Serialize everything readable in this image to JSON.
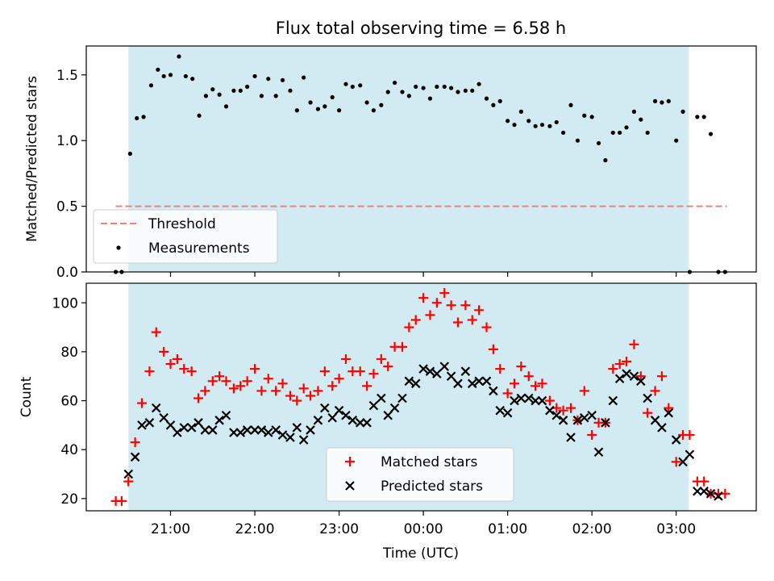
{
  "title": "Flux total observing time = 6.58 h",
  "x_axis": {
    "label": "Time (UTC)",
    "tick_labels": [
      "21:00",
      "22:00",
      "23:00",
      "00:00",
      "01:00",
      "02:00",
      "03:00"
    ],
    "tick_hours": [
      21,
      22,
      23,
      24,
      25,
      26,
      27
    ],
    "range_hours": [
      20.0,
      27.95
    ]
  },
  "shaded_window_hours": [
    20.5,
    27.15
  ],
  "colors": {
    "shade": "#add8e6",
    "threshold": "#f08080",
    "matched": "#ff0000",
    "predicted": "#000000",
    "measurements": "#000000"
  },
  "chart_data": [
    {
      "type": "scatter",
      "panel": "top",
      "ylabel": "Matched/Predicted stars",
      "ylim": [
        0,
        1.72
      ],
      "yticks": [
        0.0,
        0.5,
        1.0,
        1.5
      ],
      "ytick_labels": [
        "0.0",
        "0.5",
        "1.0",
        "1.5"
      ],
      "legend_position": "lower-left",
      "threshold": {
        "name": "Threshold",
        "value": 0.5,
        "x_range_hours": [
          20.35,
          27.6
        ]
      },
      "series": [
        {
          "name": "Measurements",
          "x_hours": [
            20.35,
            20.42,
            20.52,
            20.6,
            20.68,
            20.77,
            20.85,
            20.92,
            21.0,
            21.1,
            21.18,
            21.26,
            21.34,
            21.42,
            21.5,
            21.58,
            21.66,
            21.75,
            21.83,
            21.91,
            22.0,
            22.08,
            22.16,
            22.25,
            22.33,
            22.42,
            22.5,
            22.58,
            22.66,
            22.75,
            22.83,
            22.92,
            23.0,
            23.08,
            23.16,
            23.25,
            23.33,
            23.41,
            23.5,
            23.58,
            23.66,
            23.75,
            23.83,
            23.91,
            24.0,
            24.08,
            24.16,
            24.25,
            24.33,
            24.41,
            24.5,
            24.58,
            24.66,
            24.75,
            24.83,
            24.91,
            25.0,
            25.08,
            25.16,
            25.25,
            25.33,
            25.41,
            25.5,
            25.58,
            25.66,
            25.75,
            25.83,
            25.91,
            26.0,
            26.08,
            26.16,
            26.25,
            26.33,
            26.41,
            26.5,
            26.58,
            26.66,
            26.75,
            26.83,
            26.91,
            27.0,
            27.08,
            27.16,
            27.25,
            27.33,
            27.41,
            27.5,
            27.58
          ],
          "values": [
            0.0,
            0.0,
            0.9,
            1.17,
            1.18,
            1.42,
            1.54,
            1.49,
            1.5,
            1.64,
            1.49,
            1.47,
            1.19,
            1.34,
            1.39,
            1.35,
            1.26,
            1.38,
            1.38,
            1.41,
            1.49,
            1.34,
            1.47,
            1.34,
            1.46,
            1.38,
            1.23,
            1.48,
            1.29,
            1.24,
            1.26,
            1.33,
            1.23,
            1.43,
            1.41,
            1.42,
            1.29,
            1.23,
            1.27,
            1.37,
            1.44,
            1.37,
            1.34,
            1.41,
            1.4,
            1.32,
            1.41,
            1.41,
            1.4,
            1.37,
            1.38,
            1.38,
            1.43,
            1.32,
            1.27,
            1.3,
            1.15,
            1.12,
            1.22,
            1.15,
            1.11,
            1.12,
            1.11,
            1.14,
            1.06,
            1.27,
            1.0,
            1.19,
            1.18,
            0.98,
            0.85,
            1.06,
            1.06,
            1.1,
            1.22,
            1.16,
            1.06,
            1.3,
            1.29,
            1.3,
            1.0,
            1.22,
            0.0,
            1.18,
            1.18,
            1.05,
            0.0,
            0.0
          ]
        }
      ]
    },
    {
      "type": "scatter",
      "panel": "bottom",
      "ylabel": "Count",
      "ylim": [
        15,
        108
      ],
      "yticks": [
        20,
        40,
        60,
        80,
        100
      ],
      "ytick_labels": [
        "20",
        "40",
        "60",
        "80",
        "100"
      ],
      "legend_position": "lower-center",
      "series": [
        {
          "name": "Matched stars",
          "marker": "plus",
          "x_hours": [
            20.35,
            20.42,
            20.5,
            20.58,
            20.66,
            20.75,
            20.83,
            20.92,
            21.0,
            21.08,
            21.16,
            21.25,
            21.33,
            21.41,
            21.5,
            21.58,
            21.66,
            21.75,
            21.83,
            21.91,
            22.0,
            22.08,
            22.16,
            22.25,
            22.33,
            22.42,
            22.5,
            22.58,
            22.66,
            22.75,
            22.83,
            22.92,
            23.0,
            23.08,
            23.16,
            23.25,
            23.33,
            23.41,
            23.5,
            23.58,
            23.66,
            23.75,
            23.83,
            23.91,
            24.0,
            24.08,
            24.16,
            24.25,
            24.33,
            24.41,
            24.5,
            24.58,
            24.66,
            24.75,
            24.83,
            24.91,
            25.0,
            25.08,
            25.16,
            25.25,
            25.33,
            25.41,
            25.5,
            25.58,
            25.66,
            25.75,
            25.83,
            25.91,
            26.0,
            26.08,
            26.16,
            26.25,
            26.33,
            26.41,
            26.5,
            26.58,
            26.66,
            26.75,
            26.83,
            26.91,
            27.0,
            27.08,
            27.16,
            27.25,
            27.33,
            27.41,
            27.5,
            27.58
          ],
          "values": [
            19,
            19,
            27,
            43,
            59,
            72,
            88,
            80,
            75,
            77,
            73,
            72,
            61,
            64,
            68,
            70,
            68,
            65,
            66,
            68,
            73,
            64,
            69,
            64,
            67,
            62,
            60,
            65,
            62,
            64,
            72,
            66,
            69,
            77,
            72,
            72,
            66,
            71,
            77,
            74,
            82,
            82,
            90,
            93,
            102,
            95,
            100,
            104,
            99,
            92,
            99,
            93,
            97,
            90,
            81,
            73,
            63,
            67,
            74,
            70,
            66,
            67,
            60,
            57,
            56,
            57,
            52,
            64,
            46,
            51,
            51,
            73,
            75,
            76,
            83,
            70,
            55,
            64,
            70,
            57,
            35,
            46,
            46,
            27,
            27,
            22,
            22,
            22
          ]
        },
        {
          "name": "Predicted stars",
          "marker": "x",
          "x_hours": [
            20.5,
            20.58,
            20.66,
            20.75,
            20.83,
            20.92,
            21.0,
            21.08,
            21.16,
            21.25,
            21.33,
            21.41,
            21.5,
            21.58,
            21.66,
            21.75,
            21.83,
            21.91,
            22.0,
            22.08,
            22.16,
            22.25,
            22.33,
            22.42,
            22.5,
            22.58,
            22.66,
            22.75,
            22.83,
            22.92,
            23.0,
            23.08,
            23.16,
            23.25,
            23.33,
            23.41,
            23.5,
            23.58,
            23.66,
            23.75,
            23.83,
            23.91,
            24.0,
            24.08,
            24.16,
            24.25,
            24.33,
            24.41,
            24.5,
            24.58,
            24.66,
            24.75,
            24.83,
            24.91,
            25.0,
            25.08,
            25.16,
            25.25,
            25.33,
            25.41,
            25.5,
            25.58,
            25.66,
            25.75,
            25.83,
            25.91,
            26.0,
            26.08,
            26.16,
            26.25,
            26.33,
            26.41,
            26.5,
            26.58,
            26.66,
            26.75,
            26.83,
            26.91,
            27.0,
            27.08,
            27.16,
            27.25,
            27.33,
            27.41,
            27.5
          ],
          "values": [
            30,
            37,
            50,
            51,
            57,
            53,
            50,
            47,
            49,
            49,
            51,
            48,
            48,
            52,
            54,
            47,
            47,
            48,
            48,
            48,
            47,
            48,
            46,
            45,
            49,
            44,
            48,
            52,
            57,
            53,
            56,
            54,
            52,
            51,
            51,
            58,
            61,
            54,
            57,
            61,
            68,
            67,
            73,
            72,
            71,
            74,
            70,
            67,
            72,
            67,
            68,
            68,
            64,
            56,
            55,
            60,
            61,
            61,
            60,
            60,
            56,
            54,
            52,
            45,
            52,
            53,
            54,
            39,
            51,
            60,
            69,
            71,
            70,
            68,
            61,
            52,
            49,
            55,
            44,
            35,
            38,
            23,
            23,
            22,
            21
          ]
        }
      ]
    }
  ]
}
